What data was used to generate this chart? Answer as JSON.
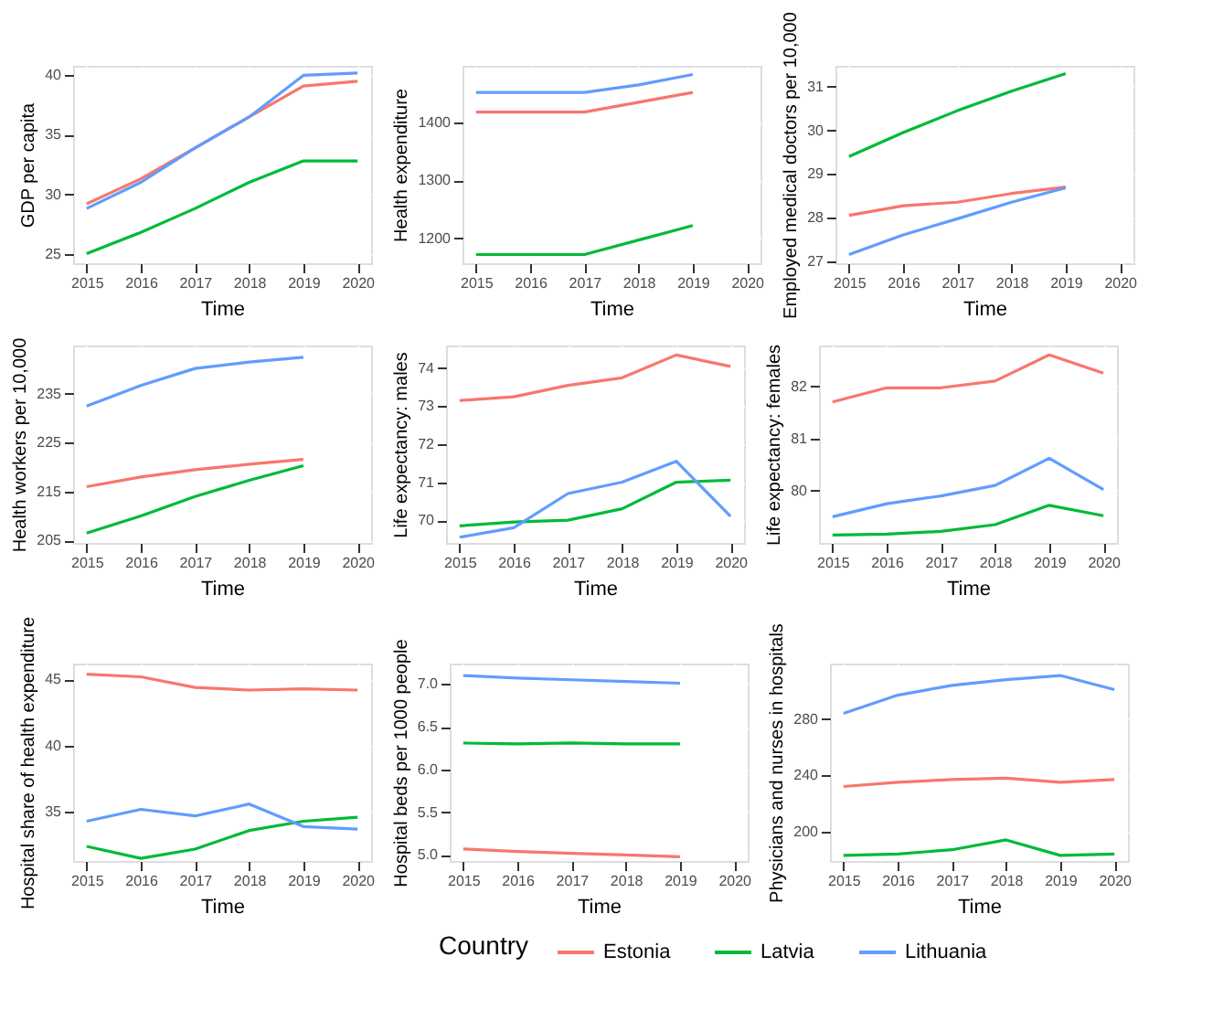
{
  "chart_data": [
    {
      "type": "line",
      "xlabel": "Time",
      "ylabel": "GDP per capita",
      "x": [
        2015,
        2016,
        2017,
        2018,
        2019,
        2020
      ],
      "xlim": [
        2014.75,
        2020.25
      ],
      "xticks": [
        2015,
        2016,
        2017,
        2018,
        2019,
        2020
      ],
      "ylim": [
        24.2,
        40.8
      ],
      "yticks": [
        25,
        30,
        35,
        40
      ],
      "grid": true,
      "legend": "bottom",
      "legend_title": "Country",
      "series": [
        {
          "name": "Estonia",
          "color": "#f8766d",
          "values": [
            29.2,
            31.3,
            33.9,
            36.5,
            39.1,
            39.5
          ]
        },
        {
          "name": "Latvia",
          "color": "#00ba38",
          "values": [
            25.0,
            26.8,
            28.8,
            31.0,
            32.8,
            32.8
          ]
        },
        {
          "name": "Lithuania",
          "color": "#619cff",
          "values": [
            28.8,
            31.0,
            33.9,
            36.5,
            40.0,
            40.2
          ]
        }
      ]
    },
    {
      "type": "line",
      "xlabel": "Time",
      "ylabel": "Health expenditure",
      "x": [
        2015,
        2016,
        2017,
        2018,
        2019
      ],
      "xlim": [
        2014.75,
        2020.25
      ],
      "xticks": [
        2015,
        2016,
        2017,
        2018,
        2019,
        2020
      ],
      "ylim": [
        1157,
        1498
      ],
      "yticks": [
        1200,
        1300,
        1400
      ],
      "grid": true,
      "series": [
        {
          "color": "#f8766d",
          "values": [
            1418,
            1418,
            1418,
            1435,
            1452
          ]
        },
        {
          "color": "#00ba38",
          "values": [
            1172,
            1172,
            1172,
            1197,
            1222
          ]
        },
        {
          "color": "#619cff",
          "values": [
            1452,
            1452,
            1452,
            1465,
            1483
          ]
        }
      ]
    },
    {
      "type": "line",
      "xlabel": "Time",
      "ylabel": "Employed medical doctors per 10,000",
      "x": [
        2015,
        2016,
        2017,
        2018,
        2019
      ],
      "xlim": [
        2014.75,
        2020.25
      ],
      "xticks": [
        2015,
        2016,
        2017,
        2018,
        2019,
        2020
      ],
      "ylim": [
        26.95,
        31.48
      ],
      "yticks": [
        27,
        28,
        29,
        30,
        31
      ],
      "grid": true,
      "series": [
        {
          "color": "#f8766d",
          "values": [
            28.05,
            28.27,
            28.35,
            28.55,
            28.7
          ]
        },
        {
          "color": "#00ba38",
          "values": [
            29.4,
            29.95,
            30.45,
            30.9,
            31.3
          ]
        },
        {
          "color": "#619cff",
          "values": [
            27.15,
            27.6,
            27.97,
            28.35,
            28.68
          ]
        }
      ]
    },
    {
      "type": "line",
      "xlabel": "Time",
      "ylabel": "Health workers per 10,000",
      "x": [
        2015,
        2016,
        2017,
        2018,
        2019
      ],
      "xlim": [
        2014.75,
        2020.25
      ],
      "xticks": [
        2015,
        2016,
        2017,
        2018,
        2019,
        2020
      ],
      "ylim": [
        204.5,
        244.9
      ],
      "yticks": [
        205,
        215,
        225,
        235
      ],
      "grid": true,
      "series": [
        {
          "color": "#f8766d",
          "values": [
            216,
            218,
            219.5,
            220.6,
            221.6
          ]
        },
        {
          "color": "#00ba38",
          "values": [
            206.5,
            210,
            214,
            217.3,
            220.3
          ]
        },
        {
          "color": "#619cff",
          "values": [
            232.5,
            236.7,
            240.2,
            241.5,
            242.5
          ]
        }
      ]
    },
    {
      "type": "line",
      "xlabel": "Time",
      "ylabel": "Life expectancy: males",
      "x": [
        2015,
        2016,
        2017,
        2018,
        2019,
        2020
      ],
      "xlim": [
        2014.75,
        2020.25
      ],
      "xticks": [
        2015,
        2016,
        2017,
        2018,
        2019,
        2020
      ],
      "ylim": [
        69.4,
        74.6
      ],
      "yticks": [
        70,
        71,
        72,
        73,
        74
      ],
      "grid": true,
      "series": [
        {
          "color": "#f8766d",
          "values": [
            73.15,
            73.25,
            73.55,
            73.75,
            74.35,
            74.05
          ]
        },
        {
          "color": "#00ba38",
          "values": [
            69.85,
            69.95,
            70.0,
            70.3,
            71.0,
            71.05
          ]
        },
        {
          "color": "#619cff",
          "values": [
            69.55,
            69.8,
            70.7,
            71.0,
            71.55,
            70.1
          ]
        }
      ]
    },
    {
      "type": "line",
      "xlabel": "Time",
      "ylabel": "Life expectancy: females",
      "x": [
        2015,
        2016,
        2017,
        2018,
        2019,
        2020
      ],
      "xlim": [
        2014.75,
        2020.25
      ],
      "xticks": [
        2015,
        2016,
        2017,
        2018,
        2019,
        2020
      ],
      "ylim": [
        79.0,
        82.78
      ],
      "yticks": [
        80,
        81,
        82
      ],
      "grid": true,
      "series": [
        {
          "color": "#f8766d",
          "values": [
            81.7,
            81.97,
            81.97,
            82.1,
            82.6,
            82.25
          ]
        },
        {
          "color": "#00ba38",
          "values": [
            79.15,
            79.17,
            79.22,
            79.35,
            79.72,
            79.52
          ]
        },
        {
          "color": "#619cff",
          "values": [
            79.5,
            79.75,
            79.9,
            80.1,
            80.62,
            80.02
          ]
        }
      ]
    },
    {
      "type": "line",
      "xlabel": "Time",
      "ylabel": "Hospital share of health expenditure",
      "x": [
        2015,
        2016,
        2017,
        2018,
        2019,
        2020
      ],
      "xlim": [
        2014.75,
        2020.25
      ],
      "xticks": [
        2015,
        2016,
        2017,
        2018,
        2019,
        2020
      ],
      "ylim": [
        31.3,
        46.2
      ],
      "yticks": [
        35,
        40,
        45
      ],
      "grid": true,
      "series": [
        {
          "color": "#f8766d",
          "values": [
            45.4,
            45.2,
            44.4,
            44.2,
            44.3,
            44.2
          ]
        },
        {
          "color": "#00ba38",
          "values": [
            32.4,
            31.5,
            32.2,
            33.6,
            34.3,
            34.6
          ]
        },
        {
          "color": "#619cff",
          "values": [
            34.3,
            35.2,
            34.7,
            35.6,
            33.9,
            33.7
          ]
        }
      ]
    },
    {
      "type": "line",
      "xlabel": "Time",
      "ylabel": "Hospital beds per 1000 people",
      "x": [
        2015,
        2016,
        2017,
        2018,
        2019
      ],
      "xlim": [
        2014.75,
        2020.25
      ],
      "xticks": [
        2015,
        2016,
        2017,
        2018,
        2019,
        2020
      ],
      "ylim": [
        4.93,
        7.24
      ],
      "yticks": [
        {
          "value": 5,
          "label": "5.0"
        },
        5.5,
        {
          "value": 6,
          "label": "6.0"
        },
        6.5,
        {
          "value": 7,
          "label": "7.0"
        }
      ],
      "grid": true,
      "series": [
        {
          "color": "#f8766d",
          "values": [
            5.07,
            5.04,
            5.02,
            5.0,
            4.98
          ]
        },
        {
          "color": "#00ba38",
          "values": [
            6.31,
            6.3,
            6.31,
            6.3,
            6.3
          ]
        },
        {
          "color": "#619cff",
          "values": [
            7.1,
            7.07,
            7.05,
            7.03,
            7.01
          ]
        }
      ]
    },
    {
      "type": "line",
      "xlabel": "Time",
      "ylabel": "Physicians and nurses in hospitals",
      "x": [
        2015,
        2016,
        2017,
        2018,
        2019,
        2020
      ],
      "xlim": [
        2014.75,
        2020.25
      ],
      "xticks": [
        2015,
        2016,
        2017,
        2018,
        2019,
        2020
      ],
      "ylim": [
        179,
        319.5
      ],
      "yticks": [
        200,
        240,
        280
      ],
      "grid": true,
      "series": [
        {
          "color": "#f8766d",
          "values": [
            232,
            235,
            237,
            238,
            235,
            237
          ]
        },
        {
          "color": "#00ba38",
          "values": [
            183,
            184,
            187,
            194,
            183,
            184
          ]
        },
        {
          "color": "#619cff",
          "values": [
            284,
            297,
            304,
            308,
            311,
            301
          ]
        }
      ]
    }
  ]
}
